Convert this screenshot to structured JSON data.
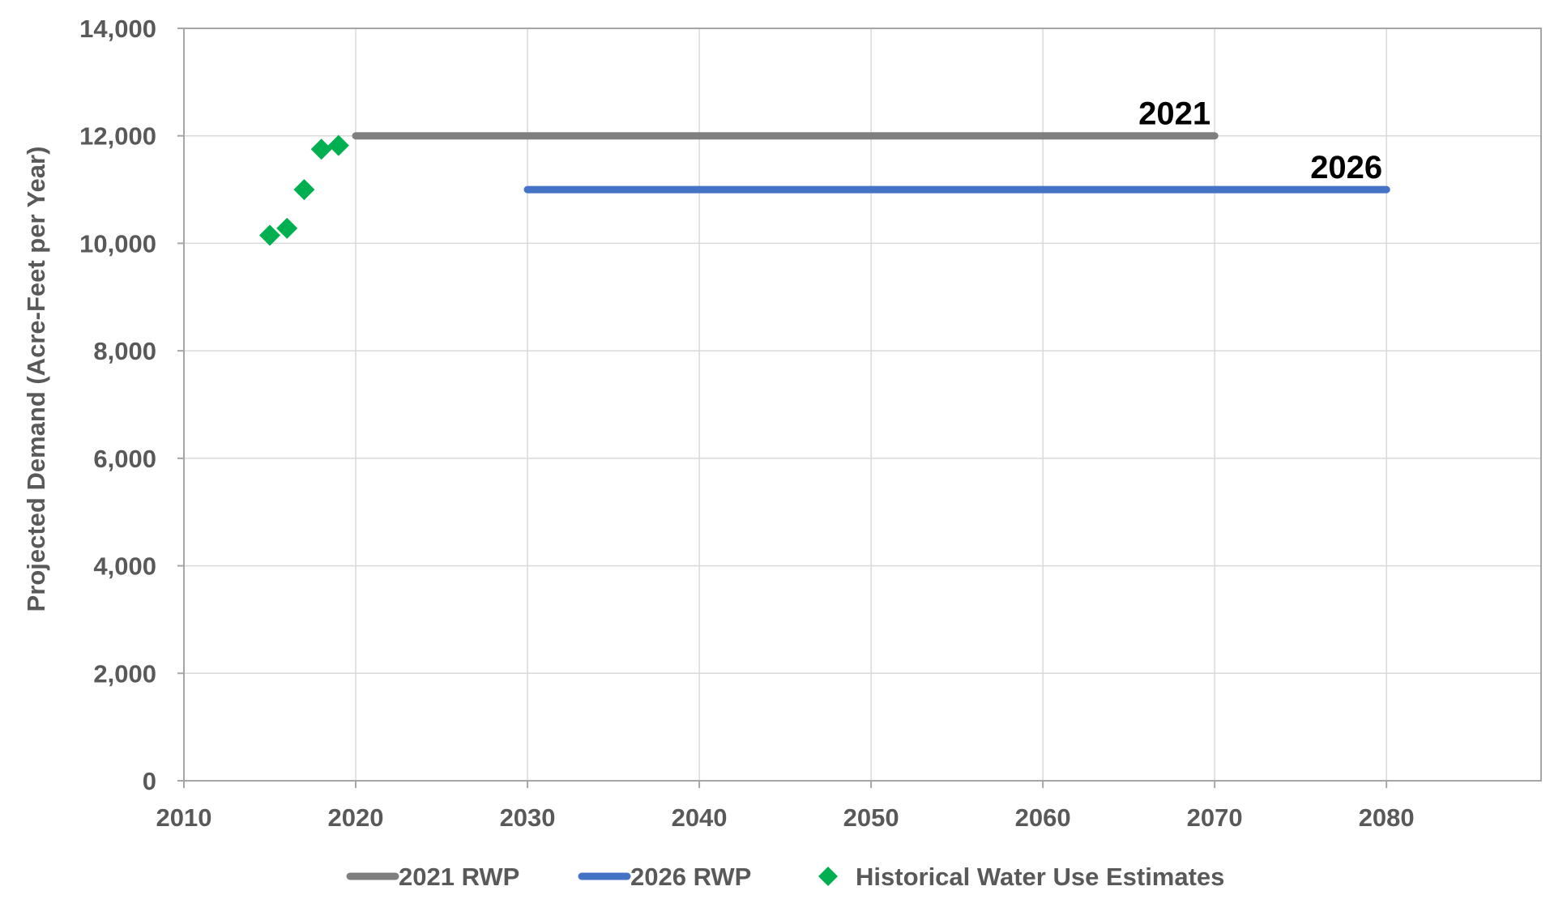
{
  "chart_data": {
    "type": "line",
    "title": "",
    "xlabel": "",
    "ylabel": "Projected Demand (Acre-Feet per Year)",
    "xlim": [
      2010,
      2089
    ],
    "ylim": [
      0,
      14000
    ],
    "x_ticks": [
      2010,
      2020,
      2030,
      2040,
      2050,
      2060,
      2070,
      2080
    ],
    "x_tick_labels": [
      "2010",
      "2020",
      "2030",
      "2040",
      "2050",
      "2060",
      "2070",
      "2080"
    ],
    "y_ticks": [
      0,
      2000,
      4000,
      6000,
      8000,
      10000,
      12000,
      14000
    ],
    "y_tick_labels": [
      "0",
      "2,000",
      "4,000",
      "6,000",
      "8,000",
      "10,000",
      "12,000",
      "14,000"
    ],
    "grid": true,
    "legend_position": "bottom",
    "series": [
      {
        "name": "2021 RWP",
        "kind": "line",
        "color": "#7f7f7f",
        "annotation": "2021",
        "x": [
          2020,
          2030,
          2040,
          2050,
          2060,
          2070
        ],
        "y": [
          12000,
          12000,
          12000,
          12000,
          12000,
          12000
        ]
      },
      {
        "name": "2026 RWP",
        "kind": "line",
        "color": "#4472c4",
        "annotation": "2026",
        "x": [
          2030,
          2040,
          2050,
          2060,
          2070,
          2080
        ],
        "y": [
          11000,
          11000,
          11000,
          11000,
          11000,
          11000
        ]
      },
      {
        "name": "Historical Water Use Estimates",
        "kind": "scatter",
        "marker": "diamond",
        "color": "#00b050",
        "x": [
          2015,
          2016,
          2017,
          2018,
          2019
        ],
        "y": [
          10150,
          10280,
          11000,
          11750,
          11820
        ]
      }
    ]
  }
}
